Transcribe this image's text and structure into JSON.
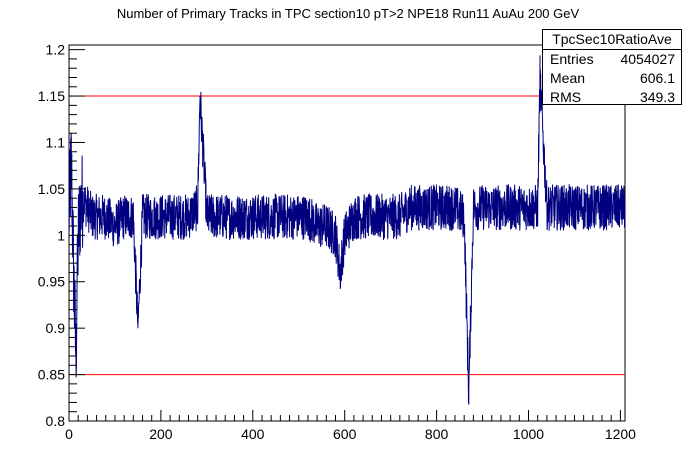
{
  "chart_data": {
    "type": "line",
    "title": "Number of Primary Tracks in TPC section10 pT>2 NPE18 Run11 AuAu 200 GeV",
    "xlabel": "",
    "ylabel": "",
    "xlim": [
      0,
      1210
    ],
    "ylim": [
      0.8,
      1.205
    ],
    "x_ticks": [
      0,
      200,
      400,
      600,
      800,
      1000,
      1200
    ],
    "y_ticks": [
      0.8,
      0.85,
      0.9,
      0.95,
      1,
      1.05,
      1.1,
      1.15,
      1.2
    ],
    "series": [
      {
        "x": [
          0,
          5,
          10,
          15,
          20,
          25,
          30,
          40,
          50,
          60,
          80,
          100,
          120,
          140,
          150,
          160,
          180,
          200,
          220,
          240,
          260,
          280,
          285,
          300,
          320,
          340,
          360,
          380,
          400,
          420,
          440,
          460,
          480,
          500,
          520,
          540,
          560,
          580,
          590,
          600,
          620,
          640,
          660,
          680,
          700,
          720,
          740,
          760,
          780,
          800,
          820,
          840,
          860,
          870,
          880,
          900,
          920,
          940,
          960,
          980,
          1000,
          1020,
          1025,
          1040,
          1060,
          1080,
          1100,
          1120,
          1140,
          1160,
          1180,
          1200,
          1210
        ],
        "values": [
          1.02,
          1.08,
          0.96,
          0.87,
          1.0,
          1.03,
          1.04,
          1.03,
          1.02,
          1.02,
          1.02,
          1.01,
          1.02,
          1.02,
          0.9,
          1.02,
          1.02,
          1.02,
          1.02,
          1.02,
          1.02,
          1.03,
          1.15,
          1.02,
          1.02,
          1.02,
          1.02,
          1.02,
          1.02,
          1.02,
          1.02,
          1.02,
          1.02,
          1.02,
          1.02,
          1.01,
          1.01,
          1.0,
          0.96,
          1.0,
          1.02,
          1.02,
          1.02,
          1.02,
          1.02,
          1.02,
          1.03,
          1.03,
          1.03,
          1.03,
          1.03,
          1.03,
          1.02,
          0.83,
          1.03,
          1.03,
          1.03,
          1.03,
          1.03,
          1.03,
          1.03,
          1.03,
          1.17,
          1.03,
          1.03,
          1.03,
          1.03,
          1.03,
          1.03,
          1.03,
          1.03,
          1.03,
          1.03
        ],
        "color": "#000080",
        "spread": 0.025
      }
    ],
    "reference_lines": [
      {
        "y": 1.15,
        "color": "#ff0000"
      },
      {
        "y": 0.85,
        "color": "#ff0000"
      }
    ],
    "grid": false,
    "stats": {
      "name": "TpcSec10RatioAve",
      "rows": [
        {
          "label": "Entries",
          "value": "4054027"
        },
        {
          "label": "Mean",
          "value": "606.1"
        },
        {
          "label": "RMS",
          "value": "349.3"
        }
      ]
    }
  }
}
